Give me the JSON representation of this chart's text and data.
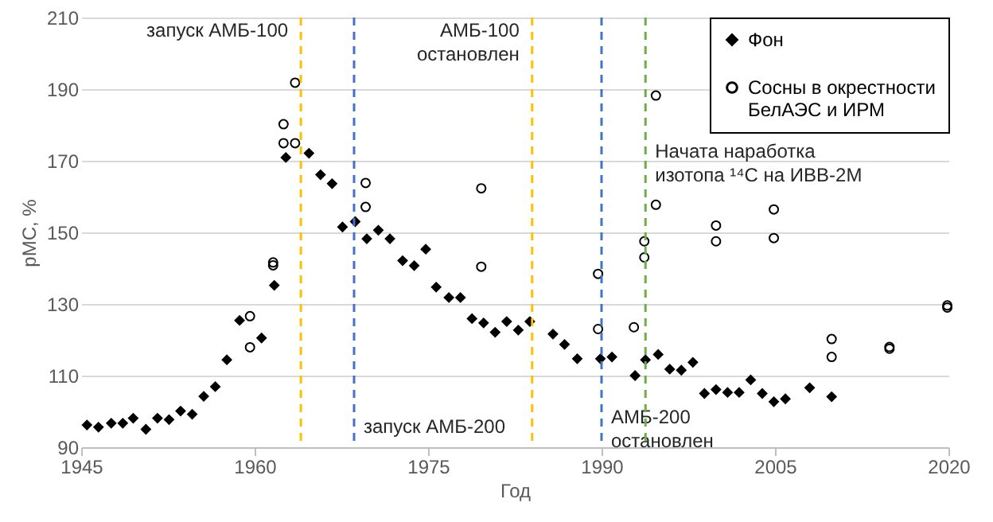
{
  "chart_data": {
    "type": "scatter",
    "xlabel": "Год",
    "ylabel": "pMC, %",
    "xlim": [
      1945,
      2020
    ],
    "xticks": [
      1945,
      1960,
      1975,
      1990,
      2005,
      2020
    ],
    "ylim": [
      90,
      210
    ],
    "yticks": [
      90,
      110,
      130,
      150,
      170,
      190,
      210
    ],
    "grid": "y",
    "legend": "top right",
    "series": [
      {
        "name": "Фон",
        "color": "#000000",
        "marker": "diamond",
        "x": [
          1945.5,
          1946.5,
          1947.6,
          1948.6,
          1949.5,
          1950.6,
          1951.6,
          1952.6,
          1953.6,
          1954.6,
          1955.6,
          1956.6,
          1957.6,
          1958.7,
          1960.6,
          1961.7,
          1962.7,
          1964.7,
          1965.7,
          1966.7,
          1967.6,
          1968.7,
          1969.7,
          1970.7,
          1971.7,
          1972.8,
          1973.8,
          1974.8,
          1975.7,
          1976.8,
          1977.8,
          1978.8,
          1979.8,
          1980.8,
          1981.8,
          1982.8,
          1983.8,
          1985.8,
          1986.8,
          1987.9,
          1989.9,
          1990.9,
          1992.9,
          1993.8,
          1994.9,
          1995.9,
          1996.9,
          1997.9,
          1998.9,
          1999.9,
          2000.9,
          2001.9,
          2002.9,
          2003.9,
          2004.9,
          2005.9,
          2008.0,
          2009.9
        ],
        "values": [
          96.2,
          95.6,
          96.7,
          96.7,
          98.1,
          95.0,
          98.1,
          97.7,
          100.1,
          99.2,
          104.2,
          106.9,
          114.4,
          125.4,
          120.5,
          135.2,
          170.9,
          172.1,
          166.1,
          163.6,
          151.5,
          153.0,
          148.2,
          150.6,
          148.2,
          142.1,
          140.7,
          145.3,
          134.7,
          131.8,
          131.8,
          125.9,
          124.7,
          122.1,
          125.1,
          122.7,
          125.1,
          121.6,
          118.7,
          114.7,
          114.7,
          115.2,
          110.0,
          114.4,
          115.9,
          111.8,
          111.5,
          113.7,
          105.0,
          106.1,
          105.3,
          105.3,
          108.8,
          105.0,
          102.7,
          103.5,
          106.6,
          104.1
        ]
      },
      {
        "name": "Сосны в окрестности\nБелАЭС и ИРМ",
        "color": "#000000",
        "marker": "circle",
        "x": [
          1959.6,
          1959.6,
          1961.6,
          1961.6,
          1962.5,
          1962.5,
          1963.5,
          1963.5,
          1969.6,
          1969.6,
          1979.6,
          1979.6,
          1989.7,
          1989.7,
          1992.8,
          1993.7,
          1993.7,
          1994.7,
          1994.7,
          1999.9,
          1999.9,
          2004.9,
          2004.9,
          2009.9,
          2009.9,
          2014.9,
          2014.9,
          2019.9,
          2019.9
        ],
        "values": [
          126.6,
          117.9,
          141.6,
          140.8,
          180.2,
          174.9,
          191.8,
          174.9,
          163.8,
          157.1,
          162.3,
          140.4,
          138.4,
          123.0,
          123.5,
          147.5,
          143.0,
          188.2,
          157.7,
          151.9,
          147.5,
          156.4,
          148.4,
          120.2,
          115.2,
          118.0,
          117.5,
          129.6,
          129.0
        ]
      }
    ],
    "ref_lines": [
      {
        "axis": "x",
        "value": 1964,
        "label": "запуск АМБ-100",
        "color": "#ffc000",
        "line_style": "dashed"
      },
      {
        "axis": "x",
        "value": 1968.6,
        "label": "запуск АМБ-200",
        "color": "#4472c4",
        "line_style": "dashed"
      },
      {
        "axis": "x",
        "value": 1984,
        "label": "АМБ-100\nостановлен",
        "color": "#ffc000",
        "line_style": "dashed"
      },
      {
        "axis": "x",
        "value": 1990,
        "label": "АМБ-200\nостановлен",
        "color": "#4472c4",
        "line_style": "dashed"
      },
      {
        "axis": "x",
        "value": 1993.8,
        "label": "Начата наработка\nизотопа ¹⁴C на ИВВ-2М",
        "color": "#70ad47",
        "line_style": "dashed"
      }
    ]
  }
}
